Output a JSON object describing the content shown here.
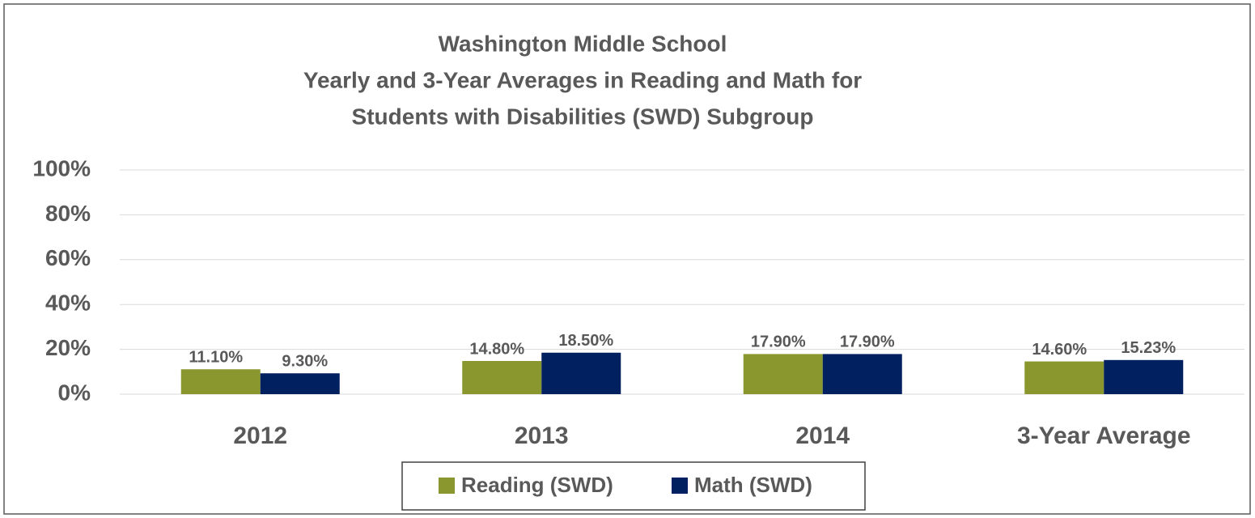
{
  "chart_data": {
    "type": "bar",
    "title": [
      "Washington Middle School",
      "Yearly and 3-Year Averages in Reading and Math for",
      "Students with Disabilities (SWD) Subgroup"
    ],
    "categories": [
      "2012",
      "2013",
      "2014",
      "3-Year Average"
    ],
    "series": [
      {
        "name": "Reading (SWD)",
        "color": "#8a962e",
        "values": [
          11.1,
          14.8,
          17.9,
          14.6
        ],
        "value_labels": [
          "11.10%",
          "14.80%",
          "17.90%",
          "14.60%"
        ]
      },
      {
        "name": "Math (SWD)",
        "color": "#002060",
        "values": [
          9.3,
          18.5,
          17.9,
          15.23
        ],
        "value_labels": [
          "9.30%",
          "18.50%",
          "17.90%",
          "15.23%"
        ]
      }
    ],
    "ylim": [
      0,
      100
    ],
    "yticks": [
      {
        "value": 0,
        "label": "0%"
      },
      {
        "value": 20,
        "label": "20%"
      },
      {
        "value": 40,
        "label": "40%"
      },
      {
        "value": 60,
        "label": "60%"
      },
      {
        "value": 80,
        "label": "80%"
      },
      {
        "value": 100,
        "label": "100%"
      }
    ],
    "grid": true,
    "legend": "bottom"
  }
}
